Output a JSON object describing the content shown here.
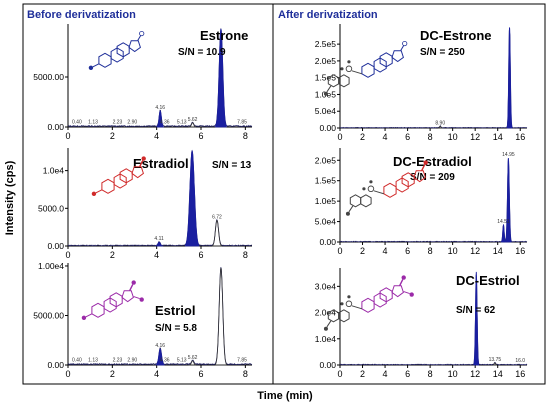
{
  "figure": {
    "y_axis_label": "Intensity (cps)",
    "x_axis_label": "Time (min)",
    "left_header": "Before derivatization",
    "right_header": "After derivatization"
  },
  "colors": {
    "peak_fill": "#1a1fa0",
    "header_text": "#1f2f9a"
  },
  "chart_data": [
    {
      "type": "line",
      "id": "estrone",
      "compound": "Estrone",
      "sn_label": "S/N = 10.9",
      "structure_color": "#1f2f9a",
      "xlim": [
        0,
        8.3
      ],
      "ylim": [
        0,
        10300
      ],
      "xticks": [
        0,
        2,
        4,
        6,
        8
      ],
      "yticks": [
        {
          "v": 0,
          "label": "0.00"
        },
        {
          "v": 5000,
          "label": "5000.00"
        }
      ],
      "noise": 120,
      "peaks": [
        {
          "x": 4.16,
          "h": 1600,
          "w": 0.05,
          "filled": true
        },
        {
          "x": 5.62,
          "h": 420,
          "w": 0.05,
          "filled": false
        },
        {
          "x": 6.9,
          "h": 9800,
          "w": 0.08,
          "filled": true
        }
      ],
      "annotations": [
        {
          "x": 0.4,
          "label": "0.40"
        },
        {
          "x": 1.13,
          "label": "1.13"
        },
        {
          "x": 2.23,
          "label": "2.23"
        },
        {
          "x": 2.9,
          "label": "2.90"
        },
        {
          "x": 4.16,
          "label": "4.16"
        },
        {
          "x": 4.36,
          "label": "4.36"
        },
        {
          "x": 5.13,
          "label": "5.13"
        },
        {
          "x": 5.62,
          "label": "5.62"
        },
        {
          "x": 7.85,
          "label": "7.85"
        }
      ]
    },
    {
      "type": "line",
      "id": "estradiol",
      "compound": "Estradiol",
      "sn_label": "S/N = 13",
      "structure_color": "#d02a2a",
      "xlim": [
        0,
        8.3
      ],
      "ylim": [
        0,
        13000
      ],
      "xticks": [
        0,
        2,
        4,
        6,
        8
      ],
      "yticks": [
        {
          "v": 0,
          "label": "0.00"
        },
        {
          "v": 5000,
          "label": "5000.0"
        },
        {
          "v": 10000,
          "label": "1.0e4"
        }
      ],
      "noise": 110,
      "peaks": [
        {
          "x": 4.11,
          "h": 500,
          "w": 0.05,
          "filled": true
        },
        {
          "x": 5.6,
          "h": 12600,
          "w": 0.1,
          "filled": true
        },
        {
          "x": 6.72,
          "h": 3400,
          "w": 0.07,
          "filled": false
        }
      ],
      "annotations": [
        {
          "x": 4.11,
          "label": "4.11"
        },
        {
          "x": 6.72,
          "label": "6.72"
        }
      ]
    },
    {
      "type": "line",
      "id": "estriol",
      "compound": "Estriol",
      "sn_label": "S/N = 5.8",
      "structure_color": "#9b2aa8",
      "xlim": [
        0,
        8.3
      ],
      "ylim": [
        0,
        10300
      ],
      "xticks": [
        0,
        2,
        4,
        6,
        8
      ],
      "yticks": [
        {
          "v": 0,
          "label": "0.00"
        },
        {
          "v": 5000,
          "label": "5000.00"
        },
        {
          "v": 10000,
          "label": "1.00e4"
        }
      ],
      "noise": 120,
      "peaks": [
        {
          "x": 4.16,
          "h": 1600,
          "w": 0.06,
          "filled": true
        },
        {
          "x": 5.62,
          "h": 420,
          "w": 0.05,
          "filled": false
        },
        {
          "x": 6.9,
          "h": 9800,
          "w": 0.08,
          "filled": false
        }
      ],
      "annotations": [
        {
          "x": 0.4,
          "label": "0.40"
        },
        {
          "x": 1.13,
          "label": "1.13"
        },
        {
          "x": 2.23,
          "label": "2.23"
        },
        {
          "x": 2.9,
          "label": "2.90"
        },
        {
          "x": 4.16,
          "label": "4.16"
        },
        {
          "x": 4.36,
          "label": "4.36"
        },
        {
          "x": 5.13,
          "label": "5.13"
        },
        {
          "x": 5.62,
          "label": "5.62"
        },
        {
          "x": 7.85,
          "label": "7.85"
        }
      ]
    },
    {
      "type": "line",
      "id": "dc-estrone",
      "compound": "DC-Estrone",
      "sn_label": "S/N = 250",
      "structure_color": "#1f2f9a",
      "xlim": [
        0,
        16.6
      ],
      "ylim": [
        0,
        310000
      ],
      "xticks": [
        0,
        2,
        4,
        6,
        8,
        10,
        12,
        14,
        16
      ],
      "yticks": [
        {
          "v": 0,
          "label": "0.00"
        },
        {
          "v": 50000,
          "label": "5.0e4"
        },
        {
          "v": 100000,
          "label": "1.0e5"
        },
        {
          "v": 150000,
          "label": "1.5e5"
        },
        {
          "v": 200000,
          "label": "2.0e5"
        },
        {
          "v": 250000,
          "label": "2.5e5"
        }
      ],
      "noise": 1500,
      "peaks": [
        {
          "x": 8.9,
          "h": 5000,
          "w": 0.06,
          "filled": false
        },
        {
          "x": 15.05,
          "h": 300000,
          "w": 0.07,
          "filled": true
        }
      ],
      "annotations": [
        {
          "x": 8.9,
          "label": "8.90"
        }
      ]
    },
    {
      "type": "line",
      "id": "dc-estradiol",
      "compound": "DC-Estradiol",
      "sn_label": "S/N = 209",
      "structure_color": "#d02a2a",
      "xlim": [
        0,
        16.6
      ],
      "ylim": [
        0,
        230000
      ],
      "xticks": [
        0,
        2,
        4,
        6,
        8,
        10,
        12,
        14,
        16
      ],
      "yticks": [
        {
          "v": 0,
          "label": "0.00"
        },
        {
          "v": 50000,
          "label": "5.0e4"
        },
        {
          "v": 100000,
          "label": "1.0e5"
        },
        {
          "v": 150000,
          "label": "1.5e5"
        },
        {
          "v": 200000,
          "label": "2.0e5"
        }
      ],
      "noise": 1500,
      "peaks": [
        {
          "x": 14.51,
          "h": 42000,
          "w": 0.06,
          "filled": true
        },
        {
          "x": 14.95,
          "h": 205000,
          "w": 0.08,
          "filled": true
        }
      ],
      "annotations": [
        {
          "x": 14.51,
          "label": "14.51"
        },
        {
          "x": 14.95,
          "label": "14.95"
        }
      ]
    },
    {
      "type": "line",
      "id": "dc-estriol",
      "compound": "DC-Estriol",
      "sn_label": "S/N = 62",
      "structure_color": "#9b2aa8",
      "xlim": [
        0,
        16.6
      ],
      "ylim": [
        0,
        37000
      ],
      "xticks": [
        0,
        2,
        4,
        6,
        8,
        10,
        12,
        14,
        16
      ],
      "yticks": [
        {
          "v": 0,
          "label": "0.00"
        },
        {
          "v": 10000,
          "label": "1.0e4"
        },
        {
          "v": 20000,
          "label": "2.0e4"
        },
        {
          "v": 30000,
          "label": "3.0e4"
        }
      ],
      "noise": 250,
      "peaks": [
        {
          "x": 12.1,
          "h": 35500,
          "w": 0.07,
          "filled": true
        },
        {
          "x": 13.75,
          "h": 800,
          "w": 0.06,
          "filled": false
        }
      ],
      "annotations": [
        {
          "x": 13.75,
          "label": "13.75"
        },
        {
          "x": 16.0,
          "label": "16.0"
        }
      ]
    }
  ]
}
